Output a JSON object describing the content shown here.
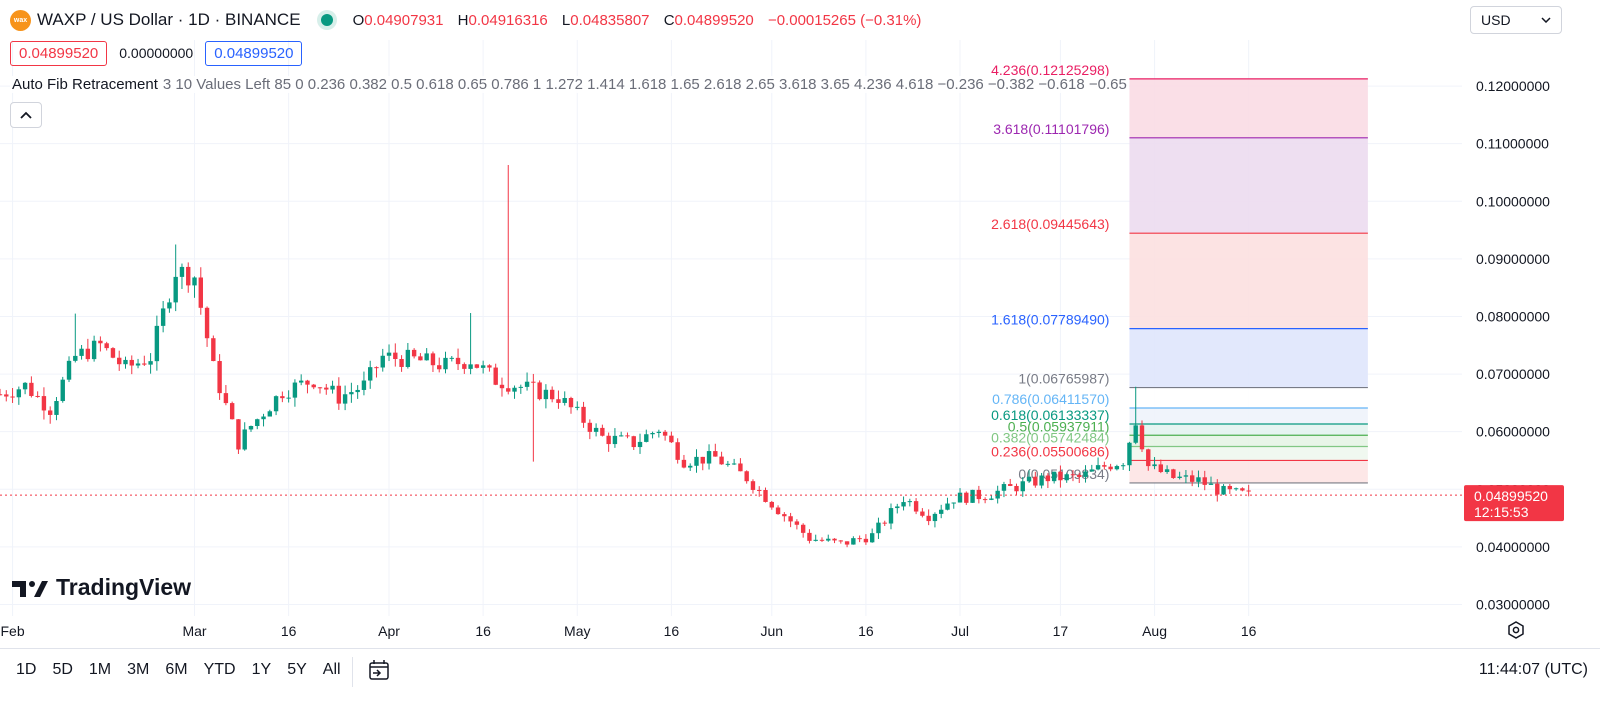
{
  "header": {
    "logo_text": "wax",
    "symbol": "WAXP / US Dollar · 1D · BINANCE",
    "o_label": "O",
    "o": "0.04907931",
    "h_label": "H",
    "h": "0.04916316",
    "l_label": "L",
    "l": "0.04835807",
    "c_label": "C",
    "c": "0.04899520",
    "change": "−0.00015265 (−0.31%)"
  },
  "sell_price": "0.04899520",
  "spread": "0.00000000",
  "buy_price": "0.04899520",
  "currency_select": "USD",
  "indicator": {
    "name": "Auto Fib Retracement",
    "params": "3 10 Values Left 85 0 0.236 0.382 0.5 0.618 0.65 0.786 1 1.272 1.414 1.618 1.65 2.618 2.65 3.618 3.65 4.236 4.618 −0.236 −0.382 −0.618 −0.65"
  },
  "collapse_icon": "chevron-up-icon",
  "brand": "TradingView",
  "ranges": [
    "1D",
    "5D",
    "1M",
    "3M",
    "6M",
    "YTD",
    "1Y",
    "5Y",
    "All"
  ],
  "clock": "11:44:07 (UTC)",
  "chart_data": {
    "type": "candlestick",
    "y_axis": {
      "min": 0.028,
      "max": 0.128,
      "position": "right",
      "ticks": [
        "0.03000000",
        "0.04000000",
        "0.05000000",
        "0.06000000",
        "0.07000000",
        "0.08000000",
        "0.09000000",
        "0.10000000",
        "0.11000000",
        "0.12000000"
      ],
      "tick_values": [
        0.03,
        0.04,
        0.05,
        0.06,
        0.07,
        0.08,
        0.09,
        0.1,
        0.11,
        0.12
      ]
    },
    "x_axis": {
      "labels": [
        "Feb",
        "Mar",
        "16",
        "Apr",
        "16",
        "May",
        "16",
        "Jun",
        "16",
        "Jul",
        "17",
        "Aug",
        "16"
      ],
      "label_days": [
        31,
        60,
        75,
        91,
        106,
        121,
        136,
        152,
        167,
        182,
        198,
        213,
        228
      ],
      "start_day": 29,
      "end_day": 262
    },
    "last_price": {
      "value": 0.0489952,
      "label": "0.04899520",
      "countdown": "12:15:53",
      "color": "#f23645"
    },
    "colors": {
      "up": "#089981",
      "down": "#f23645"
    },
    "grid": true,
    "fib_levels": [
      {
        "ratio": "4.236",
        "label": "4.236(0.12125298)",
        "value": 0.12125298,
        "color": "#e91e63",
        "fill": "#fadbe4"
      },
      {
        "ratio": "3.618",
        "label": "3.618(0.11101796)",
        "value": 0.11101796,
        "color": "#9c27b0",
        "fill": "#ecdcf0"
      },
      {
        "ratio": "2.618",
        "label": "2.618(0.09445643)",
        "value": 0.09445643,
        "color": "#f23645",
        "fill": "#fce0e0"
      },
      {
        "ratio": "1.618",
        "label": "1.618(0.07789490)",
        "value": 0.0778949,
        "color": "#2962ff",
        "fill": "#dfe6fc"
      },
      {
        "ratio": "1",
        "label": "1(0.06765987)",
        "value": 0.06765987,
        "color": "#787b86",
        "fill": "#ffffff"
      },
      {
        "ratio": "0.786",
        "label": "0.786(0.06411570)",
        "value": 0.0641157,
        "color": "#64b5f6",
        "fill": "#eef3fb"
      },
      {
        "ratio": "0.618",
        "label": "0.618(0.06133337)",
        "value": 0.06133337,
        "color": "#089981",
        "fill": "#e3f3ef"
      },
      {
        "ratio": "0.5",
        "label": "0.5(0.05937911)",
        "value": 0.05937911,
        "color": "#4caf50",
        "fill": "#e6f4e6"
      },
      {
        "ratio": "0.382",
        "label": "0.382(0.05742484)",
        "value": 0.05742484,
        "color": "#81c784",
        "fill": "#eef7ee"
      },
      {
        "ratio": "0.236",
        "label": "0.236(0.05500686)",
        "value": 0.05500686,
        "color": "#f23645",
        "fill": "#fde4e4"
      },
      {
        "ratio": "0",
        "label": "0(0.05109834)",
        "value": 0.05109834,
        "color": "#787b86",
        "fill": "#ffffff"
      }
    ],
    "fib_range_days": [
      209,
      247
    ],
    "anchors": [
      {
        "t": 29,
        "v": 0.0665
      },
      {
        "t": 33,
        "v": 0.068
      },
      {
        "t": 37,
        "v": 0.064
      },
      {
        "t": 41,
        "v": 0.073
      },
      {
        "t": 45,
        "v": 0.075
      },
      {
        "t": 49,
        "v": 0.071
      },
      {
        "t": 53,
        "v": 0.073
      },
      {
        "t": 57,
        "v": 0.088
      },
      {
        "t": 60,
        "v": 0.087
      },
      {
        "t": 63,
        "v": 0.071
      },
      {
        "t": 67,
        "v": 0.058
      },
      {
        "t": 69,
        "v": 0.061
      },
      {
        "t": 74,
        "v": 0.067
      },
      {
        "t": 79,
        "v": 0.069
      },
      {
        "t": 83,
        "v": 0.066
      },
      {
        "t": 87,
        "v": 0.068
      },
      {
        "t": 90,
        "v": 0.073
      },
      {
        "t": 95,
        "v": 0.0725
      },
      {
        "t": 100,
        "v": 0.0715
      },
      {
        "t": 104,
        "v": 0.0725
      },
      {
        "t": 108,
        "v": 0.069
      },
      {
        "t": 113,
        "v": 0.0675
      },
      {
        "t": 118,
        "v": 0.066
      },
      {
        "t": 121,
        "v": 0.063
      },
      {
        "t": 125,
        "v": 0.059
      },
      {
        "t": 130,
        "v": 0.058
      },
      {
        "t": 134,
        "v": 0.0605
      },
      {
        "t": 138,
        "v": 0.055
      },
      {
        "t": 143,
        "v": 0.0555
      },
      {
        "t": 148,
        "v": 0.052
      },
      {
        "t": 153,
        "v": 0.0465
      },
      {
        "t": 158,
        "v": 0.0415
      },
      {
        "t": 163,
        "v": 0.0405
      },
      {
        "t": 168,
        "v": 0.042
      },
      {
        "t": 173,
        "v": 0.0485
      },
      {
        "t": 177,
        "v": 0.0455
      },
      {
        "t": 181,
        "v": 0.0485
      },
      {
        "t": 186,
        "v": 0.049
      },
      {
        "t": 191,
        "v": 0.0505
      },
      {
        "t": 196,
        "v": 0.052
      },
      {
        "t": 201,
        "v": 0.052
      },
      {
        "t": 205,
        "v": 0.054
      },
      {
        "t": 208,
        "v": 0.055
      },
      {
        "t": 210,
        "v": 0.062
      },
      {
        "t": 212,
        "v": 0.054
      },
      {
        "t": 216,
        "v": 0.052
      },
      {
        "t": 220,
        "v": 0.0515
      },
      {
        "t": 224,
        "v": 0.0495
      },
      {
        "t": 228,
        "v": 0.049
      }
    ],
    "spikes": [
      {
        "t": 41,
        "h": 0.0805
      },
      {
        "t": 57,
        "h": 0.0925
      },
      {
        "t": 104,
        "h": 0.0806
      },
      {
        "t": 110,
        "h": 0.1063
      },
      {
        "t": 114,
        "l": 0.0548
      },
      {
        "t": 210,
        "h": 0.0678
      }
    ]
  }
}
